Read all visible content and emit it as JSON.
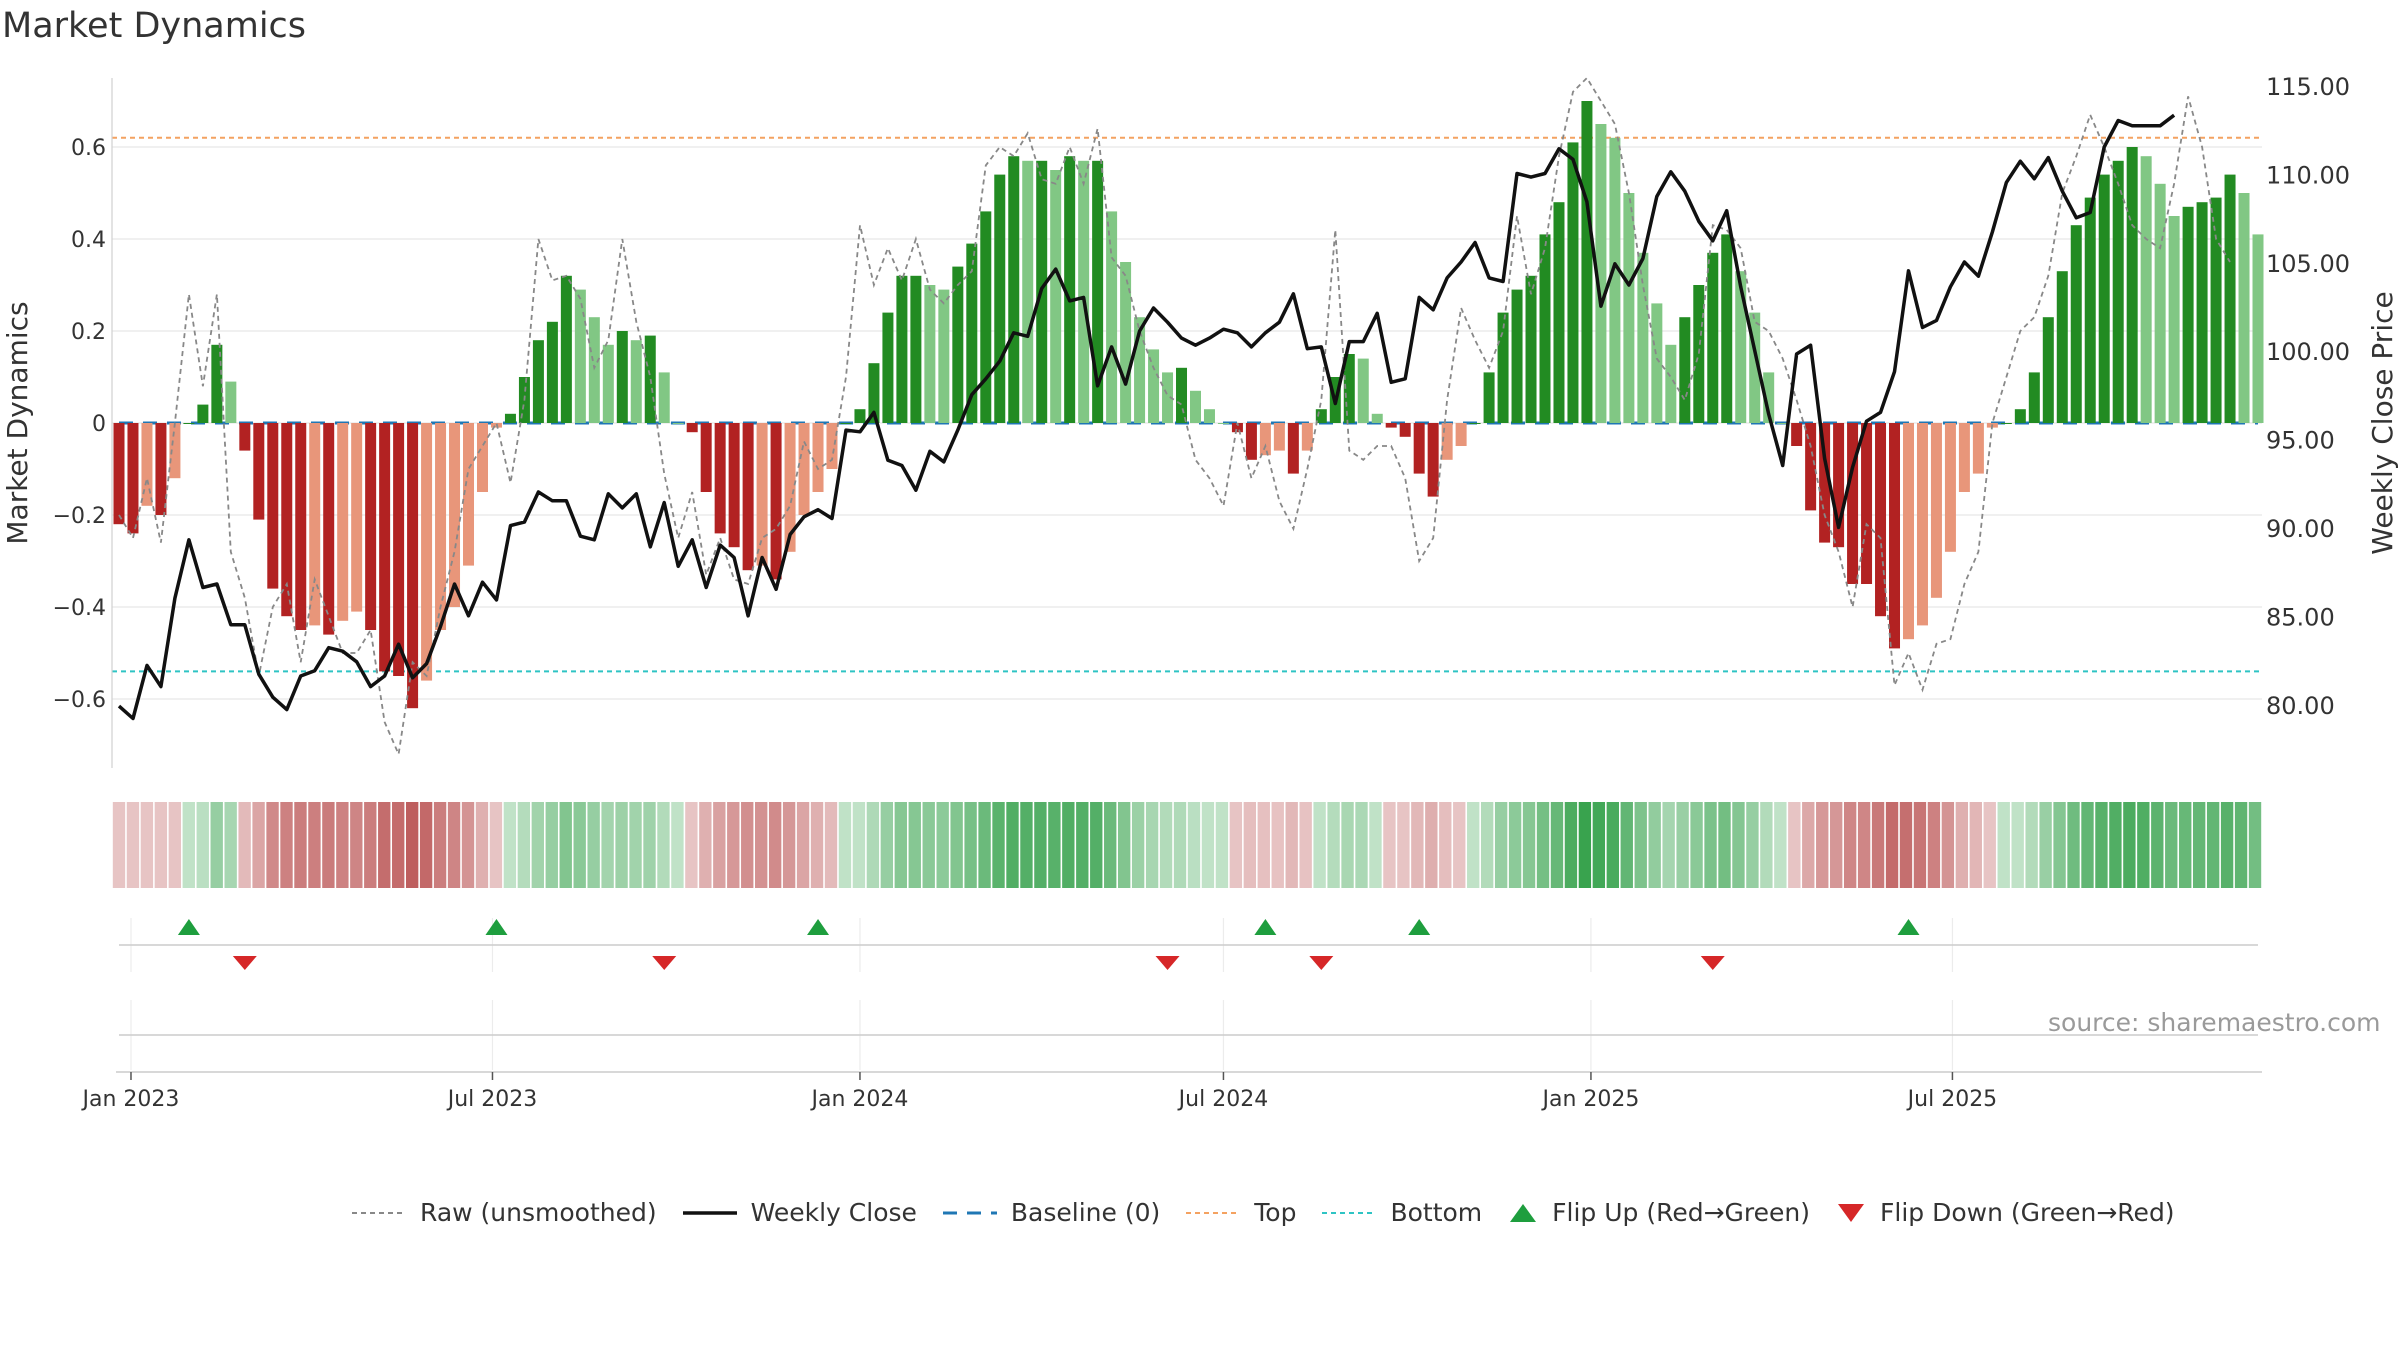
{
  "chart_data": {
    "type": "bar",
    "title": "Market Dynamics",
    "ylabel": "Market Dynamics",
    "y2label": "Weekly Close Price",
    "ylim": [
      -0.75,
      0.75
    ],
    "y2lim": [
      76.5,
      115.5
    ],
    "yticks": [
      -0.6,
      -0.4,
      -0.2,
      0,
      0.2,
      0.4,
      0.6
    ],
    "yticklabels": [
      "−0.6",
      "−0.4",
      "−0.2",
      "0",
      "0.2",
      "0.4",
      "0.6"
    ],
    "y2ticks": [
      80,
      85,
      90,
      95,
      100,
      105,
      110,
      115
    ],
    "y2ticklabels": [
      "80.00",
      "85.00",
      "90.00",
      "95.00",
      "100.00",
      "105.00",
      "110.00",
      "115.00"
    ],
    "x_start": "2022-12-26",
    "week_step_days": 7,
    "xticks": [
      {
        "date": "2023-01-01",
        "label": "Jan 2023"
      },
      {
        "date": "2023-07-01",
        "label": "Jul 2023"
      },
      {
        "date": "2024-01-01",
        "label": "Jan 2024"
      },
      {
        "date": "2024-07-01",
        "label": "Jul 2024"
      },
      {
        "date": "2025-01-01",
        "label": "Jan 2025"
      },
      {
        "date": "2025-07-01",
        "label": "Jul 2025"
      }
    ],
    "top_level": 0.62,
    "bottom_level": -0.54,
    "baseline": 0,
    "dynamics": [
      -0.22,
      -0.24,
      -0.18,
      -0.2,
      -0.12,
      0.0,
      0.04,
      0.17,
      0.09,
      -0.06,
      -0.21,
      -0.36,
      -0.42,
      -0.45,
      -0.44,
      -0.46,
      -0.43,
      -0.41,
      -0.45,
      -0.54,
      -0.55,
      -0.62,
      -0.56,
      -0.45,
      -0.4,
      -0.31,
      -0.15,
      -0.01,
      0.02,
      0.1,
      0.18,
      0.22,
      0.32,
      0.29,
      0.23,
      0.17,
      0.2,
      0.18,
      0.19,
      0.11,
      0.0,
      -0.02,
      -0.15,
      -0.24,
      -0.27,
      -0.32,
      -0.31,
      -0.34,
      -0.28,
      -0.2,
      -0.15,
      -0.1,
      0.0,
      0.03,
      0.13,
      0.24,
      0.32,
      0.32,
      0.3,
      0.29,
      0.34,
      0.39,
      0.46,
      0.54,
      0.58,
      0.57,
      0.57,
      0.55,
      0.58,
      0.57,
      0.57,
      0.46,
      0.35,
      0.23,
      0.16,
      0.11,
      0.12,
      0.07,
      0.03,
      0.0,
      -0.02,
      -0.08,
      -0.07,
      -0.06,
      -0.11,
      -0.06,
      0.03,
      0.1,
      0.15,
      0.14,
      0.02,
      -0.01,
      -0.03,
      -0.11,
      -0.16,
      -0.08,
      -0.05,
      0.0,
      0.11,
      0.24,
      0.29,
      0.32,
      0.41,
      0.48,
      0.61,
      0.7,
      0.65,
      0.62,
      0.5,
      0.37,
      0.26,
      0.17,
      0.23,
      0.3,
      0.37,
      0.41,
      0.33,
      0.24,
      0.11,
      0.0,
      -0.05,
      -0.19,
      -0.26,
      -0.27,
      -0.35,
      -0.35,
      -0.42,
      -0.49,
      -0.47,
      -0.44,
      -0.38,
      -0.28,
      -0.15,
      -0.11,
      -0.01,
      0.0,
      0.03,
      0.11,
      0.23,
      0.33,
      0.43,
      0.49,
      0.54,
      0.57,
      0.6,
      0.58,
      0.52,
      0.45,
      0.47,
      0.48,
      0.49,
      0.54,
      0.5,
      0.41
    ],
    "raw": [
      -0.2,
      -0.25,
      -0.12,
      -0.26,
      0.0,
      0.28,
      0.08,
      0.28,
      -0.28,
      -0.38,
      -0.55,
      -0.4,
      -0.35,
      -0.52,
      -0.34,
      -0.42,
      -0.5,
      -0.5,
      -0.45,
      -0.65,
      -0.72,
      -0.52,
      -0.55,
      -0.4,
      -0.28,
      -0.1,
      -0.05,
      0.0,
      -0.13,
      0.05,
      0.4,
      0.31,
      0.32,
      0.27,
      0.12,
      0.18,
      0.4,
      0.22,
      0.1,
      -0.11,
      -0.25,
      -0.15,
      -0.33,
      -0.25,
      -0.34,
      -0.35,
      -0.25,
      -0.23,
      -0.18,
      -0.04,
      -0.1,
      -0.08,
      0.1,
      0.43,
      0.3,
      0.38,
      0.31,
      0.4,
      0.29,
      0.26,
      0.3,
      0.33,
      0.56,
      0.6,
      0.58,
      0.63,
      0.53,
      0.52,
      0.6,
      0.52,
      0.64,
      0.36,
      0.32,
      0.2,
      0.12,
      0.06,
      0.04,
      -0.08,
      -0.12,
      -0.18,
      0.0,
      -0.12,
      -0.05,
      -0.17,
      -0.23,
      -0.1,
      0.05,
      0.42,
      -0.06,
      -0.08,
      -0.05,
      -0.05,
      -0.12,
      -0.3,
      -0.25,
      0.05,
      0.25,
      0.18,
      0.12,
      0.2,
      0.45,
      0.28,
      0.38,
      0.58,
      0.72,
      0.75,
      0.7,
      0.65,
      0.5,
      0.3,
      0.14,
      0.1,
      0.05,
      0.15,
      0.43,
      0.42,
      0.38,
      0.22,
      0.2,
      0.14,
      0.05,
      -0.05,
      -0.2,
      -0.28,
      -0.4,
      -0.22,
      -0.25,
      -0.57,
      -0.5,
      -0.58,
      -0.48,
      -0.47,
      -0.35,
      -0.28,
      0.0,
      0.1,
      0.2,
      0.23,
      0.32,
      0.5,
      0.58,
      0.67,
      0.6,
      0.52,
      0.43,
      0.4,
      0.38,
      0.52,
      0.71,
      0.6,
      0.4,
      0.35
    ],
    "close": [
      80,
      79.3,
      82.3,
      81.1,
      86.1,
      89.4,
      86.7,
      86.9,
      84.6,
      84.6,
      81.8,
      80.5,
      79.8,
      81.7,
      82,
      83.3,
      83.1,
      82.5,
      81.1,
      81.7,
      83.5,
      81.6,
      82.4,
      84.5,
      86.9,
      85.1,
      87,
      86,
      90.2,
      90.4,
      92.1,
      91.6,
      91.6,
      89.6,
      89.4,
      92,
      91.2,
      92,
      89,
      91.5,
      87.9,
      89.4,
      86.7,
      89.1,
      88.4,
      85.1,
      88.4,
      86.6,
      89.7,
      90.7,
      91.1,
      90.6,
      95.6,
      95.5,
      96.6,
      93.9,
      93.6,
      92.2,
      94.4,
      93.8,
      95.6,
      97.6,
      98.5,
      99.5,
      101.1,
      100.9,
      103.6,
      104.7,
      102.9,
      103.1,
      98.1,
      100.3,
      98.2,
      101.2,
      102.5,
      101.7,
      100.8,
      100.4,
      100.8,
      101.3,
      101.1,
      100.3,
      101.1,
      101.7,
      103.3,
      100.2,
      100.3,
      97.1,
      100.6,
      100.6,
      102.2,
      98.3,
      98.5,
      103.1,
      102.4,
      104.2,
      105.1,
      106.2,
      104.2,
      104,
      110.1,
      109.9,
      110.1,
      111.5,
      110.9,
      108.5,
      102.6,
      105,
      103.8,
      105.3,
      108.8,
      110.2,
      109.1,
      107.4,
      106.3,
      108,
      103.7,
      100.1,
      96.5,
      93.6,
      99.9,
      100.4,
      94,
      90.1,
      93.5,
      96.1,
      96.6,
      98.9,
      104.6,
      101.4,
      101.8,
      103.7,
      105.1,
      104.3,
      106.8,
      109.6,
      110.8,
      109.8,
      111,
      109.1,
      107.6,
      107.9,
      111.6,
      113.1,
      112.8,
      112.8,
      112.8,
      113.4
    ],
    "strip_alpha": [
      0.3,
      0.3,
      0.3,
      0.3,
      0.3,
      0.3,
      0.33,
      0.5,
      0.42,
      0.35,
      0.46,
      0.6,
      0.64,
      0.66,
      0.65,
      0.67,
      0.64,
      0.62,
      0.66,
      0.74,
      0.75,
      0.82,
      0.76,
      0.66,
      0.62,
      0.54,
      0.4,
      0.3,
      0.3,
      0.36,
      0.45,
      0.5,
      0.6,
      0.56,
      0.5,
      0.44,
      0.47,
      0.45,
      0.46,
      0.37,
      0.3,
      0.3,
      0.4,
      0.48,
      0.52,
      0.57,
      0.56,
      0.59,
      0.53,
      0.46,
      0.4,
      0.35,
      0.3,
      0.3,
      0.39,
      0.5,
      0.58,
      0.58,
      0.56,
      0.55,
      0.6,
      0.65,
      0.71,
      0.79,
      0.83,
      0.82,
      0.82,
      0.8,
      0.83,
      0.82,
      0.82,
      0.71,
      0.6,
      0.48,
      0.42,
      0.37,
      0.38,
      0.33,
      0.3,
      0.3,
      0.3,
      0.33,
      0.32,
      0.31,
      0.36,
      0.31,
      0.3,
      0.36,
      0.41,
      0.4,
      0.3,
      0.3,
      0.3,
      0.36,
      0.41,
      0.33,
      0.3,
      0.3,
      0.37,
      0.5,
      0.55,
      0.58,
      0.66,
      0.73,
      0.86,
      0.95,
      0.9,
      0.87,
      0.75,
      0.62,
      0.52,
      0.43,
      0.49,
      0.56,
      0.63,
      0.67,
      0.59,
      0.5,
      0.37,
      0.3,
      0.3,
      0.44,
      0.52,
      0.53,
      0.61,
      0.61,
      0.68,
      0.75,
      0.73,
      0.7,
      0.64,
      0.54,
      0.4,
      0.37,
      0.3,
      0.3,
      0.3,
      0.37,
      0.49,
      0.59,
      0.69,
      0.75,
      0.8,
      0.83,
      0.86,
      0.84,
      0.78,
      0.71,
      0.73,
      0.74,
      0.75,
      0.8,
      0.76,
      0.67
    ],
    "flips_up": [
      5,
      27,
      50,
      82,
      93,
      128
    ],
    "flips_down": [
      9,
      39,
      75,
      86,
      114
    ],
    "legend": [
      "Raw (unsmoothed)",
      "Weekly Close",
      "Baseline (0)",
      "Top",
      "Bottom",
      "Flip Up (Red→Green)",
      "Flip Down (Green→Red)"
    ],
    "grid": true,
    "legend_position": "bottom"
  },
  "colors": {
    "green_strong": "#228b22",
    "green_light": "#81c784",
    "red_strong": "#b22222",
    "red_light": "#e8967a",
    "strip_green": "#2e9e45",
    "strip_red": "#b03a3a",
    "close_line": "#111111",
    "raw_line": "#888888",
    "baseline": "#1f77b4",
    "top_line": "#f4a261",
    "bottom_line": "#2ec4c4",
    "flip_up": "#1e9e3e",
    "flip_down": "#d62728",
    "grid": "#e6e6e6",
    "axis_text": "#333333"
  },
  "source_note": "source: sharemaestro.com"
}
